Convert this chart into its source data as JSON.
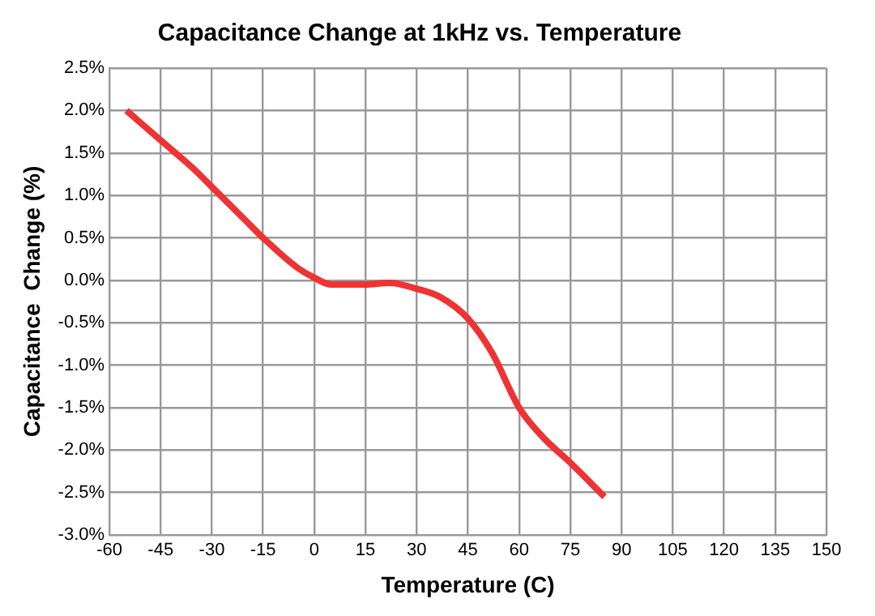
{
  "chart_data": {
    "type": "line",
    "title": "Capacitance Change at 1kHz vs. Temperature",
    "xlabel": "Temperature (C)",
    "ylabel": "Capacitance  Change (%)",
    "x": [
      -55,
      -45,
      -35,
      -30,
      -20,
      -15,
      -5,
      0,
      5,
      15,
      22,
      30,
      37,
      45,
      52,
      60,
      67,
      75,
      85
    ],
    "series": [
      {
        "color": "#ee3333",
        "values": [
          2.0,
          1.65,
          1.3,
          1.1,
          0.7,
          0.5,
          0.15,
          0.03,
          -0.05,
          -0.05,
          -0.03,
          -0.1,
          -0.2,
          -0.45,
          -0.85,
          -1.5,
          -1.85,
          -2.15,
          -2.55
        ]
      }
    ],
    "xlim": [
      -60,
      150
    ],
    "xticks": [
      -60,
      -45,
      -30,
      -15,
      0,
      15,
      30,
      45,
      60,
      75,
      90,
      105,
      120,
      135,
      150
    ],
    "ylim": [
      -3.0,
      2.5
    ],
    "yticks": [
      {
        "value": -3.0,
        "label": "-3.0%"
      },
      {
        "value": -2.5,
        "label": "-2.5%"
      },
      {
        "value": -2.0,
        "label": "-2.0%"
      },
      {
        "value": -1.5,
        "label": "-1.5%"
      },
      {
        "value": -1.0,
        "label": "-1.0%"
      },
      {
        "value": -0.5,
        "label": "-0.5%"
      },
      {
        "value": 0,
        "label": "0.0%"
      },
      {
        "value": 0.5,
        "label": "0.5%"
      },
      {
        "value": 1.0,
        "label": "1.0%"
      },
      {
        "value": 1.5,
        "label": "1.5%"
      },
      {
        "value": 2.0,
        "label": "2.0%"
      },
      {
        "value": 2.5,
        "label": "2.5%"
      }
    ],
    "grid": true,
    "legend": false,
    "marker": "none",
    "line_style": "solid"
  }
}
